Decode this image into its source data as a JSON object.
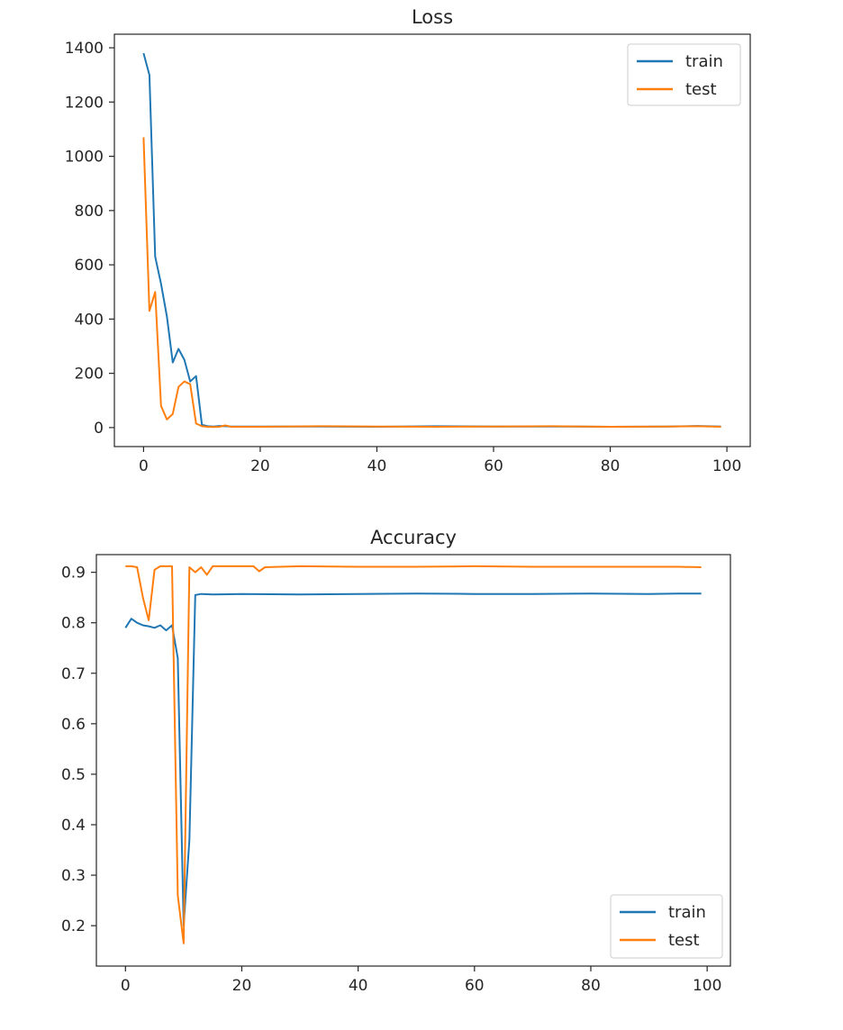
{
  "colors": {
    "train": "#1f77b4",
    "test": "#ff7f0e",
    "axis": "#262626",
    "legend_border": "#cccccc"
  },
  "chart_data": [
    {
      "type": "line",
      "title": "Loss",
      "xlabel": "",
      "ylabel": "",
      "xlim": [
        -5,
        104
      ],
      "ylim": [
        -70,
        1450
      ],
      "xticks": [
        0,
        20,
        40,
        60,
        80,
        100
      ],
      "yticks": [
        0,
        200,
        400,
        600,
        800,
        1000,
        1200,
        1400
      ],
      "grid": false,
      "legend": "upper right",
      "series": [
        {
          "name": "train",
          "color": "#1f77b4",
          "x": [
            0,
            1,
            2,
            3,
            4,
            5,
            6,
            7,
            8,
            9,
            10,
            11,
            12,
            13,
            14,
            15,
            20,
            30,
            40,
            50,
            60,
            70,
            80,
            90,
            95,
            99
          ],
          "y": [
            1380,
            1300,
            630,
            530,
            410,
            240,
            290,
            250,
            170,
            190,
            10,
            5,
            4,
            6,
            5,
            4,
            4,
            4,
            3,
            5,
            4,
            4,
            3,
            4,
            6,
            4
          ]
        },
        {
          "name": "test",
          "color": "#ff7f0e",
          "x": [
            0,
            1,
            2,
            3,
            4,
            5,
            6,
            7,
            8,
            9,
            10,
            11,
            12,
            13,
            14,
            15,
            20,
            30,
            40,
            50,
            60,
            70,
            80,
            90,
            95,
            99
          ],
          "y": [
            1070,
            430,
            500,
            80,
            30,
            50,
            150,
            170,
            160,
            15,
            5,
            3,
            2,
            3,
            8,
            3,
            3,
            5,
            4,
            3,
            4,
            5,
            3,
            4,
            5,
            3
          ]
        }
      ]
    },
    {
      "type": "line",
      "title": "Accuracy",
      "xlabel": "",
      "ylabel": "",
      "xlim": [
        -5,
        104
      ],
      "ylim": [
        0.12,
        0.935
      ],
      "xticks": [
        0,
        20,
        40,
        60,
        80,
        100
      ],
      "yticks": [
        0.2,
        0.3,
        0.4,
        0.5,
        0.6,
        0.7,
        0.8,
        0.9
      ],
      "grid": false,
      "legend": "lower right",
      "series": [
        {
          "name": "train",
          "color": "#1f77b4",
          "x": [
            0,
            1,
            2,
            3,
            4,
            5,
            6,
            7,
            8,
            9,
            10,
            11,
            12,
            13,
            15,
            20,
            30,
            40,
            50,
            60,
            70,
            80,
            90,
            95,
            99
          ],
          "y": [
            0.79,
            0.808,
            0.8,
            0.795,
            0.793,
            0.79,
            0.795,
            0.785,
            0.795,
            0.73,
            0.2,
            0.37,
            0.855,
            0.857,
            0.856,
            0.857,
            0.856,
            0.857,
            0.858,
            0.857,
            0.857,
            0.858,
            0.857,
            0.858,
            0.858
          ]
        },
        {
          "name": "test",
          "color": "#ff7f0e",
          "x": [
            0,
            1,
            2,
            3,
            4,
            5,
            6,
            7,
            8,
            9,
            10,
            11,
            12,
            13,
            14,
            15,
            20,
            22,
            23,
            24,
            30,
            40,
            50,
            60,
            70,
            80,
            90,
            95,
            99
          ],
          "y": [
            0.912,
            0.912,
            0.91,
            0.85,
            0.805,
            0.905,
            0.912,
            0.912,
            0.912,
            0.26,
            0.165,
            0.91,
            0.9,
            0.91,
            0.895,
            0.912,
            0.912,
            0.912,
            0.902,
            0.91,
            0.912,
            0.911,
            0.911,
            0.912,
            0.911,
            0.911,
            0.911,
            0.911,
            0.91
          ]
        }
      ]
    }
  ]
}
